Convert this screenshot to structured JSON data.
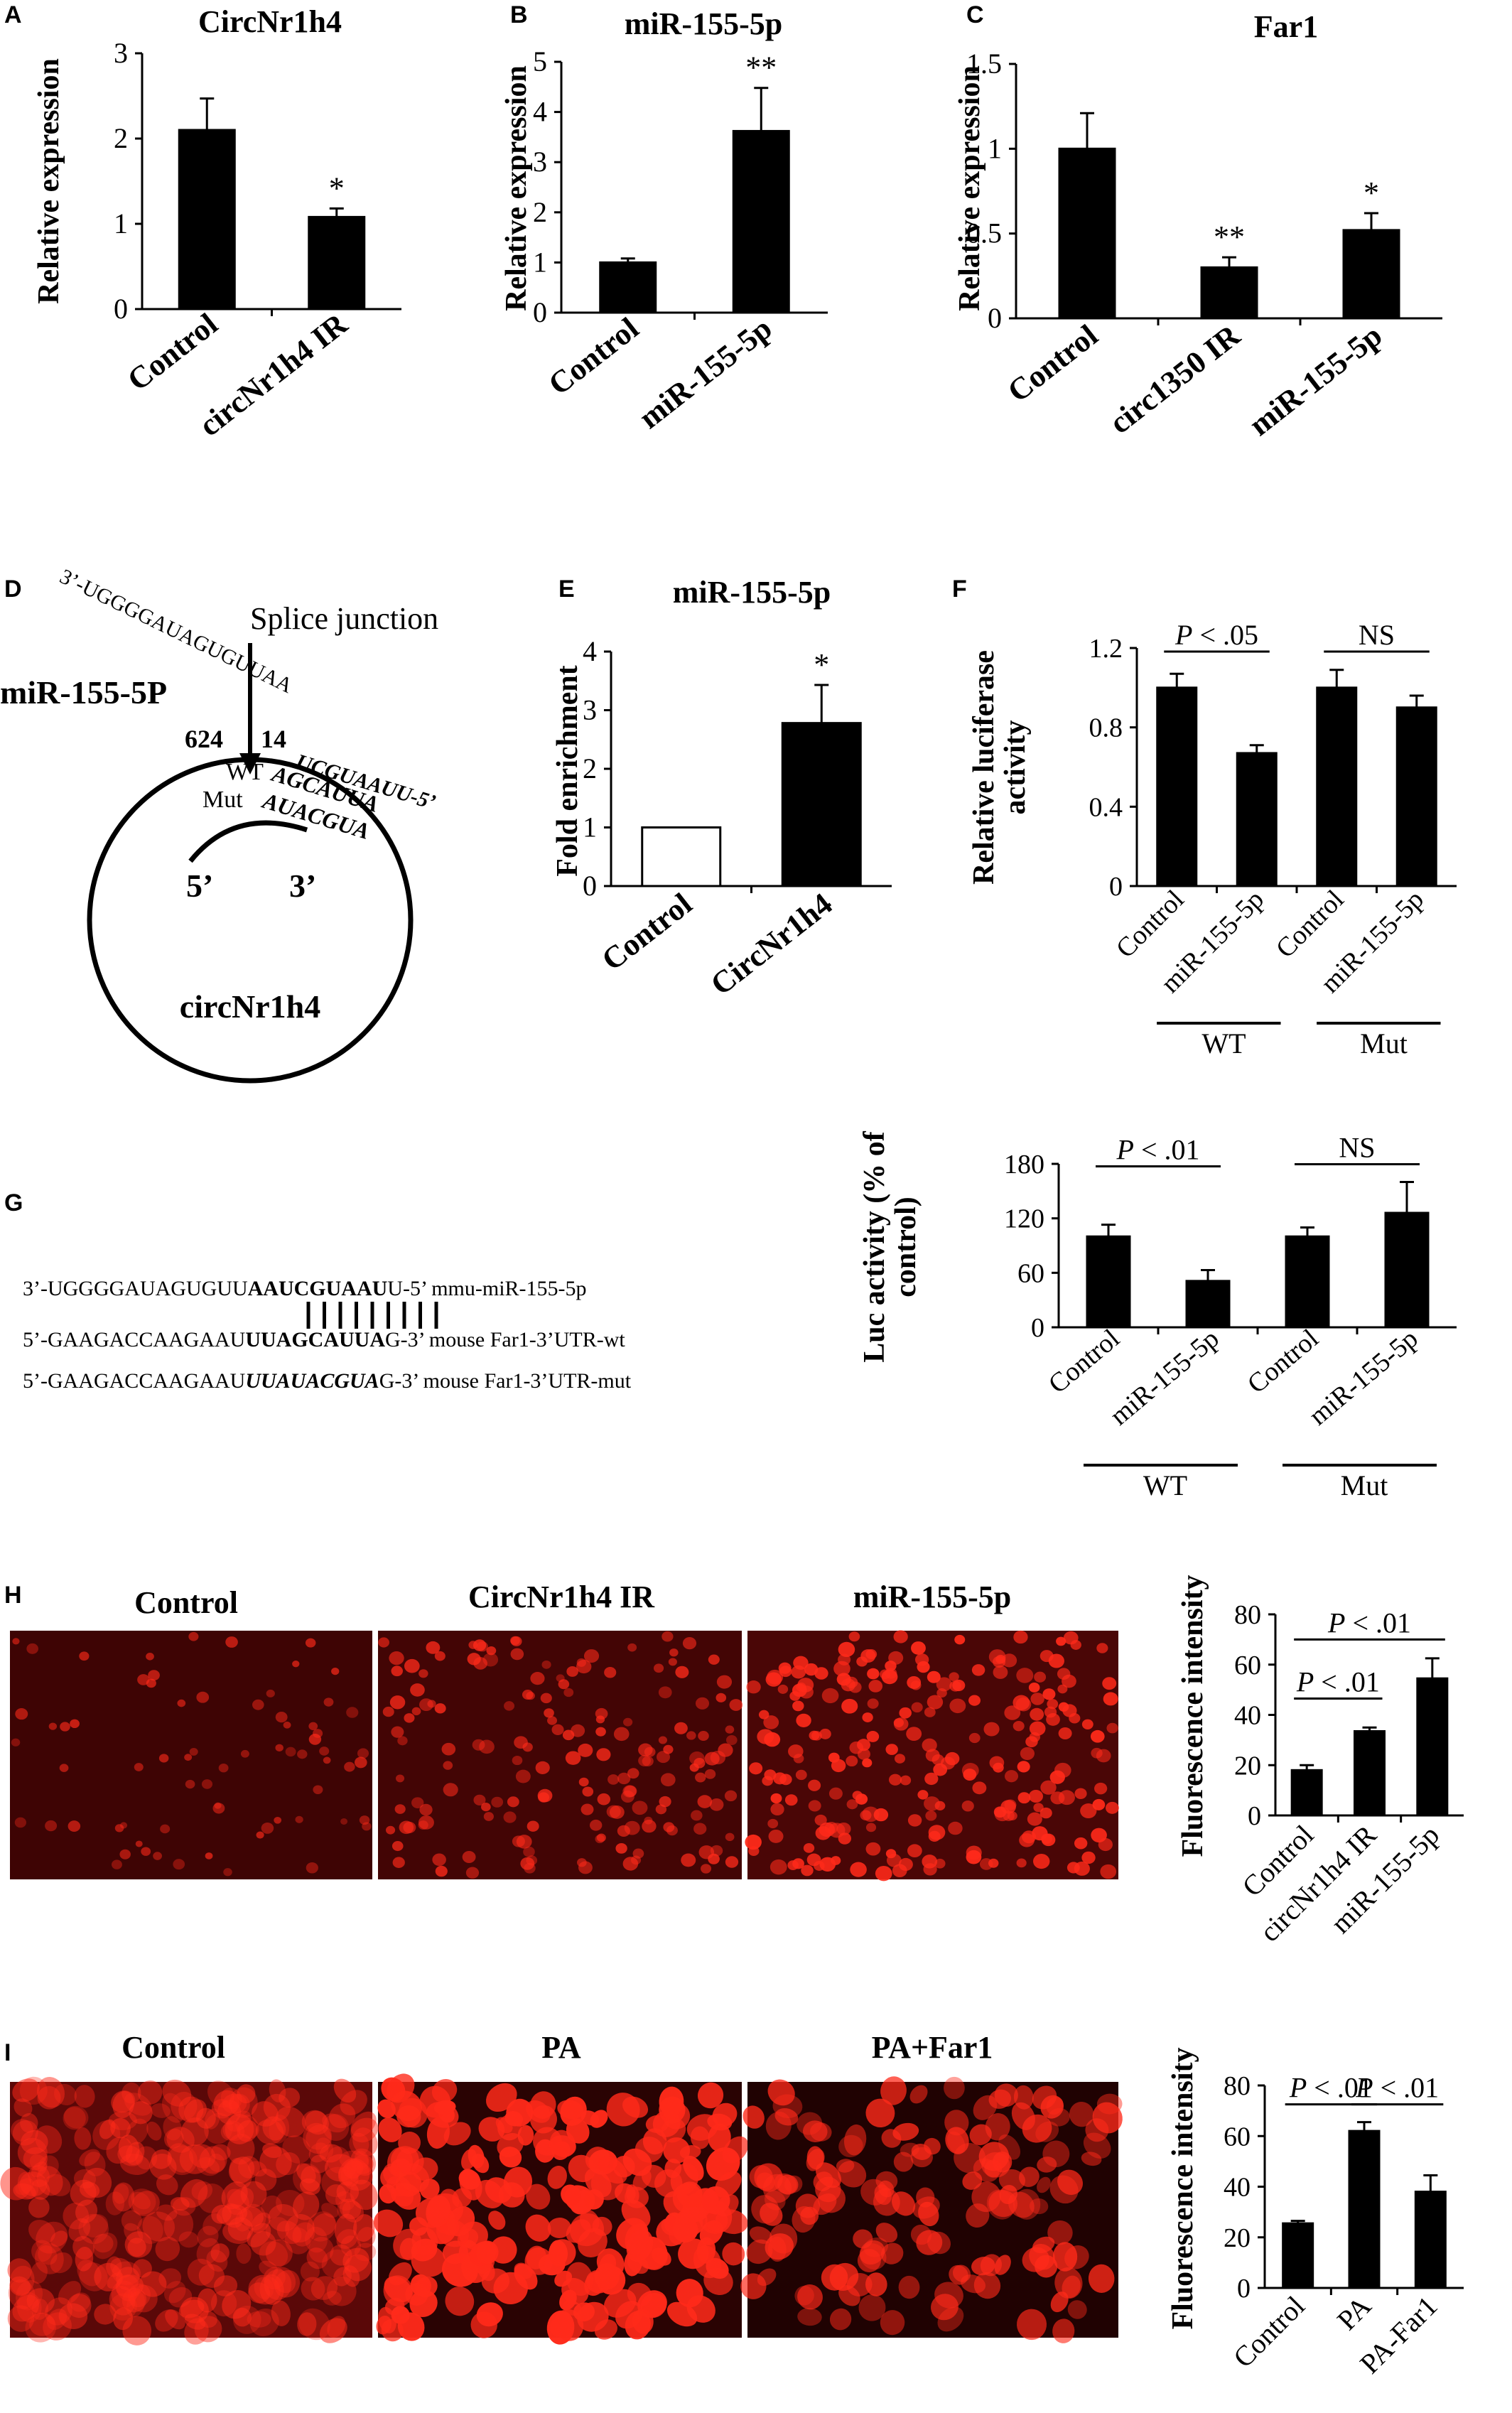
{
  "figure": {
    "panel_labels": [
      "A",
      "B",
      "C",
      "D",
      "E",
      "F",
      "G",
      "H",
      "I"
    ]
  },
  "diagram_d": {
    "mirna_seq": "3’-UGGGGAUAGUGUUAA",
    "splice_label": "Splice junction",
    "mirna_label": "miR-155-5P",
    "pos1": "624",
    "pos2": "14",
    "seed_seq": "UCGUAAUU-5’",
    "wt_label": "WT",
    "wt_seq": "AGCAUUA",
    "mut_label": "Mut",
    "mut_seq": "AUACGUA",
    "five_prime": "5’",
    "three_prime": "3’",
    "circ_label": "circNr1h4"
  },
  "sequences_g": [
    {
      "prefix": "3’-UGGGGAUAGUGUU",
      "core": "AAUCGUAAU",
      "suffix": "U-5’ mmu-miR-155-5p"
    },
    {
      "prefix": "5’-GAAGACCAAGAAU",
      "core": "UUAGCAUUA",
      "suffix": "G-3’ mouse Far1-3’UTR-wt"
    },
    {
      "prefix": "5’-GAAGACCAAGAAU",
      "core": "UUAUACGUA",
      "suffix": "G-3’ mouse Far1-3’UTR-mut"
    }
  ],
  "micrographs": {
    "h_titles": [
      "Control",
      "CircNr1h4 IR",
      "miR-155-5p"
    ],
    "i_titles": [
      "Control",
      "PA",
      "PA+Far1"
    ]
  },
  "colors": {
    "bar": "#000000",
    "open_bar": "#ffffff",
    "micro_bg": "#4a0606",
    "cell": "#ff2a1a"
  },
  "chart_data": [
    {
      "id": "A",
      "type": "bar",
      "title": "CircNr1h4",
      "ylabel": "Relative expression",
      "xlabel": "",
      "categories": [
        "Control",
        "circNr1h4 IR"
      ],
      "values": [
        2.1,
        1.08
      ],
      "errors": [
        0.37,
        0.1
      ],
      "sig": [
        "",
        "*"
      ],
      "ylim": [
        0,
        3
      ],
      "yticks": [
        0,
        1,
        2,
        3
      ],
      "ytick_labels": [
        "0",
        "1",
        "2",
        "3"
      ],
      "grid": false
    },
    {
      "id": "B",
      "type": "bar",
      "title": "miR-155-5p",
      "ylabel": "Relative expression",
      "xlabel": "",
      "categories": [
        "Control",
        "miR-155-5p"
      ],
      "values": [
        1.0,
        3.62
      ],
      "errors": [
        0.08,
        0.86
      ],
      "sig": [
        "",
        "**"
      ],
      "ylim": [
        0,
        5
      ],
      "yticks": [
        0,
        1,
        2,
        3,
        4,
        5
      ],
      "ytick_labels": [
        "0",
        "1",
        "2",
        "3",
        "4",
        "5"
      ],
      "grid": false
    },
    {
      "id": "C",
      "type": "bar",
      "title": "Far1",
      "ylabel": "Relative expression",
      "xlabel": "",
      "categories": [
        "Control",
        "circ1350 IR",
        "miR-155-5p"
      ],
      "values": [
        1.0,
        0.3,
        0.52
      ],
      "errors": [
        0.21,
        0.06,
        0.1
      ],
      "sig": [
        "",
        "**",
        "*"
      ],
      "ylim": [
        0,
        1.5
      ],
      "yticks": [
        0,
        0.5,
        1,
        1.5
      ],
      "ytick_labels": [
        "0",
        "0.5",
        "1",
        "1.5"
      ],
      "grid": false
    },
    {
      "id": "E",
      "type": "bar",
      "title": "miR-155-5p",
      "ylabel": "Fold enrichment",
      "xlabel": "",
      "categories": [
        "Control",
        "CircNr1h4"
      ],
      "values": [
        1.0,
        2.78
      ],
      "errors": [
        0,
        0.65
      ],
      "sig": [
        "",
        "*"
      ],
      "fill": [
        "open",
        "solid"
      ],
      "ylim": [
        0,
        4
      ],
      "yticks": [
        0,
        1,
        2,
        3,
        4
      ],
      "ytick_labels": [
        "0",
        "1",
        "2",
        "3",
        "4"
      ],
      "grid": false
    },
    {
      "id": "F",
      "type": "bar",
      "title": "",
      "ylabel": "Relative luciferase activity",
      "xlabel": "",
      "categories": [
        "Control",
        "miR-155-5p",
        "Control",
        "miR-155-5p"
      ],
      "values": [
        1.0,
        0.67,
        1.0,
        0.9
      ],
      "errors": [
        0.07,
        0.04,
        0.09,
        0.06
      ],
      "groups": [
        {
          "label": "WT",
          "members": [
            0,
            1
          ]
        },
        {
          "label": "Mut",
          "members": [
            2,
            3
          ]
        }
      ],
      "comparisons": [
        {
          "a": 0,
          "b": 1,
          "text": "P < .05"
        },
        {
          "a": 2,
          "b": 3,
          "text": "NS"
        }
      ],
      "ylim": [
        0,
        1.2
      ],
      "yticks": [
        0,
        0.4,
        0.8,
        1.2
      ],
      "ytick_labels": [
        "0",
        "0.4",
        "0.8",
        "1.2"
      ],
      "grid": false
    },
    {
      "id": "G",
      "type": "bar",
      "title": "",
      "ylabel": "Luc activity (% of control)",
      "xlabel": "",
      "categories": [
        "Control",
        "miR-155-5p",
        "Control",
        "miR-155-5p"
      ],
      "values": [
        100,
        51,
        100,
        126
      ],
      "errors": [
        13,
        12,
        10,
        34
      ],
      "groups": [
        {
          "label": "WT",
          "members": [
            0,
            1
          ]
        },
        {
          "label": "Mut",
          "members": [
            2,
            3
          ]
        }
      ],
      "comparisons": [
        {
          "a": 0,
          "b": 1,
          "text": "P < .01"
        },
        {
          "a": 2,
          "b": 3,
          "text": "NS"
        }
      ],
      "ylim": [
        0,
        180
      ],
      "yticks": [
        0,
        60,
        120,
        180
      ],
      "ytick_labels": [
        "0",
        "60",
        "120",
        "180"
      ],
      "grid": false
    },
    {
      "id": "H",
      "type": "bar",
      "title": "",
      "ylabel": "Fluorescence intensity",
      "xlabel": "",
      "categories": [
        "Control",
        "circNr1h4 IR",
        "miR-155-5p"
      ],
      "values": [
        18,
        33.5,
        54.5
      ],
      "errors": [
        2,
        1.5,
        8
      ],
      "comparisons": [
        {
          "a": 0,
          "b": 1,
          "text": "P < .01"
        },
        {
          "a": 0,
          "b": 2,
          "text": "P < .01"
        }
      ],
      "ylim": [
        0,
        80
      ],
      "yticks": [
        0,
        20,
        40,
        60,
        80
      ],
      "ytick_labels": [
        "0",
        "20",
        "40",
        "60",
        "80"
      ],
      "grid": false
    },
    {
      "id": "I",
      "type": "bar",
      "title": "",
      "ylabel": "Fluorescence intensity",
      "xlabel": "",
      "categories": [
        "Control",
        "PA",
        "PA-Far1"
      ],
      "values": [
        25.5,
        62,
        38
      ],
      "errors": [
        1,
        3.5,
        6.5
      ],
      "comparisons": [
        {
          "a": 0,
          "b": 1,
          "text": "P < .01"
        },
        {
          "a": 1,
          "b": 2,
          "text": "P < .01"
        }
      ],
      "ylim": [
        0,
        80
      ],
      "yticks": [
        0,
        20,
        40,
        60,
        80
      ],
      "ytick_labels": [
        "0",
        "20",
        "40",
        "60",
        "80"
      ],
      "grid": false
    }
  ]
}
